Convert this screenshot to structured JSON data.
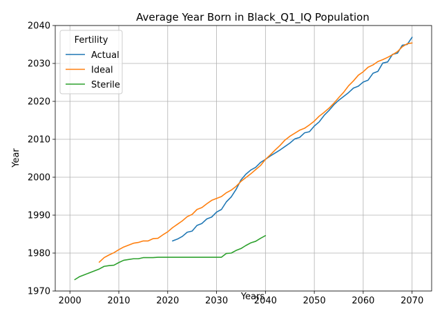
{
  "chart_data": {
    "type": "line",
    "title": "Average Year Born in Black_Q1_IQ Population",
    "xlabel": "Years",
    "ylabel": "Year",
    "xlim": [
      1997,
      2074
    ],
    "ylim": [
      1970,
      2040
    ],
    "xticks": [
      2000,
      2010,
      2020,
      2030,
      2040,
      2050,
      2060,
      2070
    ],
    "yticks": [
      1970,
      1980,
      1990,
      2000,
      2010,
      2020,
      2030,
      2040
    ],
    "grid": true,
    "legend": {
      "title": "Fertility",
      "placement": "top-left"
    },
    "series": [
      {
        "name": "Actual",
        "color": "#1f77b4",
        "x": [
          2021,
          2022,
          2023,
          2024,
          2025,
          2026,
          2027,
          2028,
          2029,
          2030,
          2031,
          2032,
          2033,
          2034,
          2035,
          2036,
          2037,
          2038,
          2039,
          2040,
          2041,
          2042,
          2043,
          2044,
          2045,
          2046,
          2047,
          2048,
          2049,
          2050,
          2051,
          2052,
          2053,
          2054,
          2055,
          2056,
          2057,
          2058,
          2059,
          2060,
          2061,
          2062,
          2063,
          2064,
          2065,
          2066,
          2067,
          2068,
          2069,
          2070
        ],
        "y": [
          1983.2,
          1983.7,
          1984.4,
          1985.5,
          1985.8,
          1987.3,
          1987.8,
          1989.0,
          1989.5,
          1990.8,
          1991.5,
          1993.5,
          1994.8,
          1996.8,
          1999.3,
          2000.8,
          2001.9,
          2002.6,
          2003.9,
          2004.7,
          2005.6,
          2006.4,
          2007.2,
          2008.1,
          2009.0,
          2010.1,
          2010.5,
          2011.7,
          2012.0,
          2013.5,
          2014.6,
          2016.3,
          2017.6,
          2019.1,
          2020.3,
          2021.3,
          2022.3,
          2023.5,
          2024.0,
          2025.1,
          2025.6,
          2027.4,
          2027.9,
          2030.1,
          2030.4,
          2032.4,
          2032.7,
          2034.8,
          2035.0,
          2036.9
        ]
      },
      {
        "name": "Ideal",
        "color": "#ff7f0e",
        "x": [
          2006,
          2007,
          2008,
          2009,
          2010,
          2011,
          2012,
          2013,
          2014,
          2015,
          2016,
          2017,
          2018,
          2019,
          2020,
          2021,
          2022,
          2023,
          2024,
          2025,
          2026,
          2027,
          2028,
          2029,
          2030,
          2031,
          2032,
          2033,
          2034,
          2035,
          2036,
          2037,
          2038,
          2039,
          2040,
          2041,
          2042,
          2043,
          2044,
          2045,
          2046,
          2047,
          2048,
          2049,
          2050,
          2051,
          2052,
          2053,
          2054,
          2055,
          2056,
          2057,
          2058,
          2059,
          2060,
          2061,
          2062,
          2063,
          2064,
          2065,
          2066,
          2067,
          2068,
          2069,
          2070
        ],
        "y": [
          1977.6,
          1978.8,
          1979.5,
          1980.1,
          1980.9,
          1981.6,
          1982.1,
          1982.6,
          1982.8,
          1983.2,
          1983.2,
          1983.8,
          1983.9,
          1984.8,
          1985.6,
          1986.7,
          1987.6,
          1988.5,
          1989.6,
          1990.2,
          1991.5,
          1992.0,
          1993.0,
          1993.9,
          1994.4,
          1994.9,
          1995.9,
          1996.6,
          1997.6,
          1998.9,
          1999.9,
          2000.9,
          2002.0,
          2003.1,
          2004.7,
          2005.9,
          2007.2,
          2008.4,
          2009.8,
          2010.8,
          2011.6,
          2012.4,
          2012.9,
          2013.8,
          2014.8,
          2016.1,
          2017.1,
          2018.2,
          2019.5,
          2021.0,
          2022.4,
          2024.1,
          2025.4,
          2026.9,
          2027.8,
          2029.0,
          2029.6,
          2030.5,
          2031.0,
          2031.6,
          2032.3,
          2033.1,
          2034.4,
          2035.2,
          2035.4
        ]
      },
      {
        "name": "Sterile",
        "color": "#2ca02c",
        "x": [
          2001,
          2002,
          2003,
          2004,
          2005,
          2006,
          2007,
          2008,
          2009,
          2010,
          2011,
          2012,
          2013,
          2014,
          2015,
          2016,
          2017,
          2018,
          2019,
          2020,
          2021,
          2022,
          2023,
          2024,
          2025,
          2026,
          2027,
          2028,
          2029,
          2030,
          2031,
          2032,
          2033,
          2034,
          2035,
          2036,
          2037,
          2038,
          2039,
          2040
        ],
        "y": [
          1973.0,
          1973.8,
          1974.3,
          1974.8,
          1975.3,
          1975.8,
          1976.5,
          1976.7,
          1976.8,
          1977.5,
          1978.1,
          1978.3,
          1978.5,
          1978.5,
          1978.8,
          1978.8,
          1978.8,
          1978.9,
          1978.9,
          1978.9,
          1978.9,
          1978.9,
          1978.9,
          1978.9,
          1978.9,
          1978.9,
          1978.9,
          1978.9,
          1978.9,
          1978.9,
          1978.9,
          1979.9,
          1980.0,
          1980.7,
          1981.2,
          1982.0,
          1982.7,
          1983.1,
          1983.9,
          1984.6
        ]
      }
    ]
  }
}
